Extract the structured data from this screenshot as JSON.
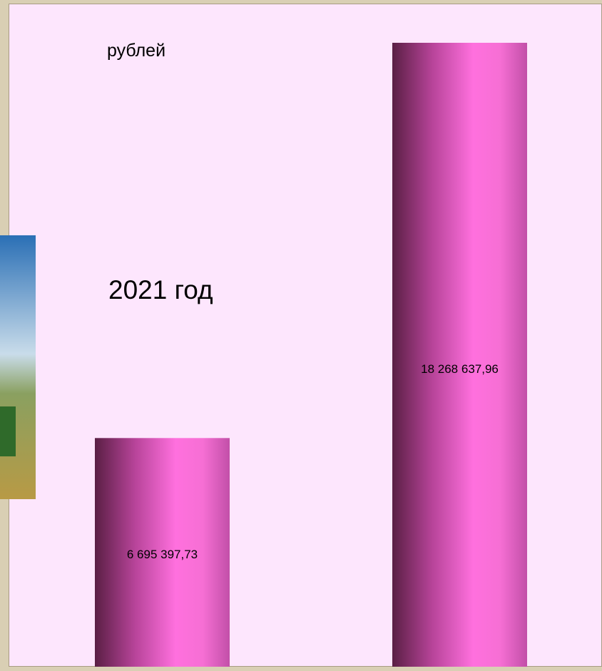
{
  "chart_data": {
    "type": "bar",
    "unit_label": "рублей",
    "title": "2021 год",
    "categories": [
      null,
      null
    ],
    "values": [
      6695397.73,
      18268637.96
    ],
    "value_labels": [
      "6 695 397,73",
      "18 268 637,96"
    ],
    "color": "#ff6fd8"
  }
}
